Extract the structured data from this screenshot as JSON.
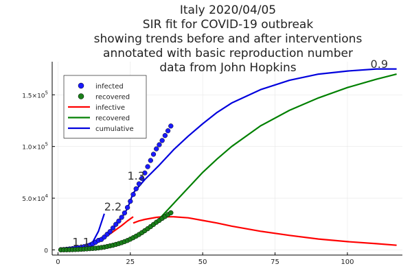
{
  "chart_data": {
    "type": "line",
    "title_lines": [
      "Italy 2020/04/05",
      "SIR fit for COVID-19 outbreak",
      "showing trends before and after interventions",
      "annotated with basic reproduction number",
      "data from John Hopkins"
    ],
    "xlabel": "",
    "ylabel": "",
    "xlim": [
      -2,
      119
    ],
    "ylim": [
      -5000,
      182000
    ],
    "x_ticks": [
      0,
      25,
      50,
      75,
      100
    ],
    "x_tick_labels": [
      "0",
      "25",
      "50",
      "75",
      "100"
    ],
    "y_ticks": [
      0,
      50000,
      100000,
      150000
    ],
    "y_tick_labels": [
      {
        "mantissa": "0",
        "exponent": ""
      },
      {
        "mantissa": "5.0×10",
        "exponent": "4"
      },
      {
        "mantissa": "1.0×10",
        "exponent": "5"
      },
      {
        "mantissa": "1.5×10",
        "exponent": "5"
      }
    ],
    "grid": true,
    "legend_position": "top-left",
    "legend": [
      {
        "label": "infected",
        "kind": "marker",
        "color": "#1a1aff"
      },
      {
        "label": "recovered",
        "kind": "marker",
        "color": "#1a7f1a"
      },
      {
        "label": "infective",
        "kind": "line",
        "color": "#ff0000"
      },
      {
        "label": "recovered",
        "kind": "line",
        "color": "#008000"
      },
      {
        "label": "cumulative",
        "kind": "line",
        "color": "#0000dd"
      }
    ],
    "series": [
      {
        "name": "infected",
        "kind": "scatter",
        "color": "#1a1aff",
        "x": [
          1,
          2,
          3,
          4,
          5,
          6,
          7,
          8,
          9,
          10,
          11,
          12,
          13,
          14,
          15,
          16,
          17,
          18,
          19,
          20,
          21,
          22,
          23,
          24,
          25,
          26,
          27,
          28,
          29,
          30,
          31,
          32,
          33,
          34,
          35,
          36,
          37,
          38,
          39
        ],
        "y": [
          200,
          350,
          600,
          900,
          1200,
          1700,
          2100,
          2500,
          3100,
          3900,
          4600,
          5900,
          7400,
          9200,
          10100,
          12400,
          15100,
          17700,
          21200,
          24700,
          27900,
          31500,
          35700,
          41000,
          47000,
          53600,
          59100,
          63900,
          69100,
          74400,
          80500,
          86500,
          92500,
          97700,
          101700,
          105800,
          110600,
          115200,
          119800
        ]
      },
      {
        "name": "recovered",
        "kind": "scatter",
        "color": "#1a7f1a",
        "x": [
          1,
          2,
          3,
          4,
          5,
          6,
          7,
          8,
          9,
          10,
          11,
          12,
          13,
          14,
          15,
          16,
          17,
          18,
          19,
          20,
          21,
          22,
          23,
          24,
          25,
          26,
          27,
          28,
          29,
          30,
          31,
          32,
          33,
          34,
          35,
          36,
          37,
          38,
          39
        ],
        "y": [
          0,
          50,
          100,
          150,
          200,
          350,
          450,
          600,
          800,
          1000,
          1200,
          1400,
          1600,
          1900,
          2300,
          2700,
          3300,
          3900,
          4500,
          5300,
          6100,
          7000,
          8000,
          9100,
          10400,
          11800,
          13300,
          14900,
          16700,
          18600,
          20500,
          22500,
          24600,
          26700,
          28500,
          30500,
          32300,
          34200,
          35900
        ]
      },
      {
        "name": "infective",
        "kind": "line",
        "color": "#ff0000",
        "segments": [
          {
            "x": [
              1,
              4,
              7,
              10,
              12
            ],
            "y": [
              500,
              1200,
              2500,
              4500,
              6500
            ]
          },
          {
            "x": [
              12,
              14,
              16,
              18,
              20,
              22,
              24,
              26
            ],
            "y": [
              7000,
              9000,
              12000,
              15500,
              19500,
              23500,
              28000,
              32000
            ]
          },
          {
            "x": [
              26,
              28,
              30,
              32,
              34,
              36,
              40,
              45,
              50,
              55,
              60,
              70,
              80,
              90,
              100,
              110,
              117
            ],
            "y": [
              26000,
              28000,
              29500,
              30500,
              31500,
              32000,
              32000,
              31000,
              28500,
              26000,
              23000,
              18000,
              14000,
              10500,
              8000,
              6000,
              4500
            ]
          }
        ]
      },
      {
        "name": "recovered",
        "kind": "line",
        "color": "#008000",
        "x": [
          15,
          20,
          25,
          30,
          35,
          40,
          45,
          50,
          55,
          60,
          70,
          80,
          90,
          100,
          110,
          117
        ],
        "y": [
          2000,
          4500,
          9000,
          17000,
          30000,
          45000,
          60000,
          75000,
          88000,
          100000,
          120000,
          135000,
          147000,
          157000,
          165000,
          170000
        ]
      },
      {
        "name": "cumulative",
        "kind": "line",
        "color": "#0000dd",
        "segments": [
          {
            "x": [
              1,
              4,
              7,
              10,
              12,
              14,
              16
            ],
            "y": [
              500,
              1500,
              3000,
              5000,
              7500,
              18000,
              35000
            ]
          },
          {
            "x": [
              12,
              14,
              16,
              18,
              20,
              22,
              24,
              26
            ],
            "y": [
              8000,
              10000,
              13000,
              18000,
              24000,
              31000,
              40000,
              55000
            ]
          },
          {
            "x": [
              26,
              30,
              35,
              40,
              45,
              50,
              55,
              60,
              70,
              80,
              90,
              100,
              110,
              117
            ],
            "y": [
              55000,
              68000,
              82000,
              97000,
              110000,
              122000,
              133000,
              142000,
              155000,
              164000,
              170000,
              173000,
              175000,
              175000
            ]
          }
        ]
      }
    ],
    "annotations": [
      {
        "text": "1.1",
        "x": 8,
        "y": 4000
      },
      {
        "text": "2.2",
        "x": 19,
        "y": 38000
      },
      {
        "text": "1.3",
        "x": 27,
        "y": 68000
      },
      {
        "text": "0.9",
        "x": 111,
        "y": 176000
      }
    ]
  }
}
